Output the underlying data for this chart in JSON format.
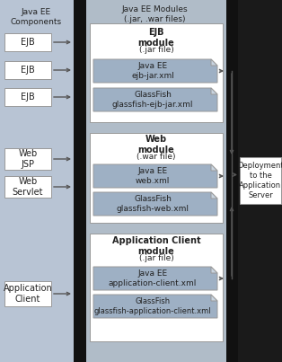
{
  "bg_color": "#b8c4d4",
  "left_bg": "#b8c4d4",
  "center_bg": "#b0bcc8",
  "dark_bar_color": "#111111",
  "white": "#ffffff",
  "descriptor_color": "#9eb0c4",
  "dogear_color": "#c8d4e0",
  "arrow_color": "#555555",
  "border_color": "#999999",
  "title_left": "Java EE\nComponents",
  "title_center": "Java EE Modules\n(.jar, .war files)",
  "ejb_labels": [
    "EJB",
    "EJB",
    "EJB"
  ],
  "web_labels": [
    "Web\nJSP",
    "Web\nServlet"
  ],
  "app_label": "Application\nClient",
  "ejb_module_title": "EJB\nmodule",
  "ejb_module_sub": "(.jar file)",
  "ejb_desc": [
    "Java EE\nejb-jar.xml",
    "GlassFish\nglassfish-ejb-jar.xml"
  ],
  "web_module_title": "Web\nmodule",
  "web_module_sub": "(.war file)",
  "web_desc": [
    "Java EE\nweb.xml",
    "GlassFish\nglassfish-web.xml"
  ],
  "app_module_title": "Application Client\nmodule",
  "app_module_sub": "(.jar file)",
  "app_desc": [
    "Java EE\napplication-client.xml",
    "GlassFish\nglassfish-application-client.xml"
  ],
  "deploy_label": "Deployment\nto the\nApplication\nServer",
  "figw": 3.14,
  "figh": 4.03,
  "dpi": 100
}
